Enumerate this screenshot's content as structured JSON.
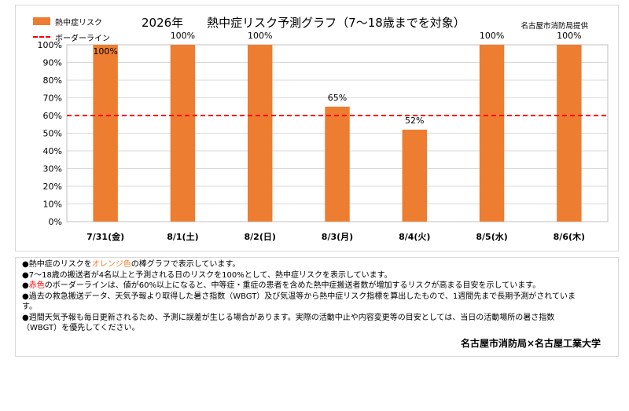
{
  "header": {
    "title": "2026年　　熱中症リスク予測グラフ（7～18歳までを対象）",
    "provider": "名古屋市消防局提供"
  },
  "legend": {
    "bar_label": "熱中症リスク",
    "line_label": "ボーダーライン"
  },
  "colors": {
    "bar": "#ED7D31",
    "border_line": "#FF0000",
    "grid": "#d9d9d9"
  },
  "chart_data": {
    "type": "bar",
    "title": "2026年　　熱中症リスク予測グラフ（7～18歳までを対象）",
    "categories": [
      "7/31(金)",
      "8/1(土)",
      "8/2(日)",
      "8/3(月)",
      "8/4(火)",
      "8/5(水)",
      "8/6(木)"
    ],
    "series": [
      {
        "name": "熱中症リスク",
        "values": [
          100,
          100,
          100,
          65,
          52,
          100,
          100
        ]
      }
    ],
    "data_labels": [
      "100%",
      "100%",
      "100%",
      "65%",
      "52%",
      "100%",
      "100%"
    ],
    "border_line": {
      "name": "ボーダーライン",
      "value": 60
    },
    "y_ticks": [
      "0%",
      "10%",
      "20%",
      "30%",
      "40%",
      "50%",
      "60%",
      "70%",
      "80%",
      "90%",
      "100%"
    ],
    "ylim": [
      0,
      100
    ],
    "grid": true,
    "legend_position": "top-left"
  },
  "notes": {
    "line1_pre": "●熱中症のリスクを",
    "line1_hl": "オレンジ色",
    "line1_post": "の棒グラフで表示しています。",
    "line2": "●7～18歳の搬送者が4名以上と予測される日のリスクを100%として、熱中症リスクを表示しています。",
    "line3_pre": "●",
    "line3_hl": "赤色",
    "line3_post": "のボーダーラインは、値が60%以上になると、中等症・重症の患者を含めた熱中症搬送者数が増加するリスクが高まる目安を示しています。",
    "line4": "●過去の救急搬送データ、天気予報より取得した暑さ指数（WBGT）及び気温等から熱中症リスク指標を算出したもので、1週間先まで長期予測がされていま",
    "line5": "す。",
    "line6": "●週間天気予報も毎日更新されるため、予測に誤差が生じる場合があります。実際の活動中止や内容変更等の目安としては、当日の活動場所の暑さ指数",
    "line7": "（WBGT）を優先してください。",
    "credit": "名古屋市消防局×名古屋工業大学"
  }
}
